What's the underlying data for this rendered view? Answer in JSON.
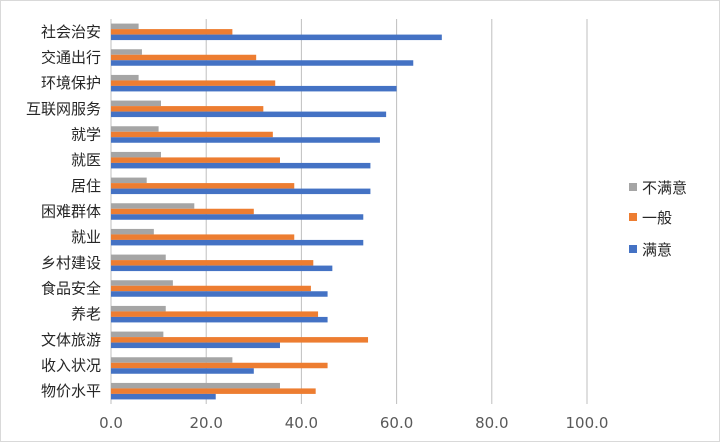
{
  "chart_data": {
    "type": "bar",
    "orientation": "horizontal",
    "categories": [
      "社会治安",
      "交通出行",
      "环境保护",
      "互联网服务",
      "就学",
      "就医",
      "居住",
      "困难群体",
      "就业",
      "乡村建设",
      "食品安全",
      "养老",
      "文体旅游",
      "收入状况",
      "物价水平"
    ],
    "series": [
      {
        "name": "不满意",
        "color": "#a5a5a5",
        "values": [
          5.8,
          6.5,
          5.8,
          10.5,
          10.0,
          10.5,
          7.5,
          17.5,
          9.0,
          11.5,
          13.0,
          11.5,
          11.0,
          25.5,
          35.5
        ]
      },
      {
        "name": "一般",
        "color": "#ed7d31",
        "values": [
          25.5,
          30.5,
          34.5,
          32.0,
          34.0,
          35.5,
          38.5,
          30.0,
          38.5,
          42.5,
          42.0,
          43.5,
          54.0,
          45.5,
          43.0
        ]
      },
      {
        "name": "满意",
        "color": "#4472c4",
        "values": [
          69.5,
          63.5,
          60.0,
          57.8,
          56.5,
          54.5,
          54.5,
          53.0,
          53.0,
          46.5,
          45.5,
          45.5,
          35.5,
          30.0,
          22.0
        ]
      }
    ],
    "xlim": [
      0,
      100
    ],
    "xticks": [
      "0.0",
      "20.0",
      "40.0",
      "60.0",
      "80.0",
      "100.0"
    ],
    "grid": true,
    "legend": {
      "position": "right",
      "order": [
        "不满意",
        "一般",
        "满意"
      ]
    },
    "title": "",
    "xlabel": "",
    "ylabel": ""
  }
}
